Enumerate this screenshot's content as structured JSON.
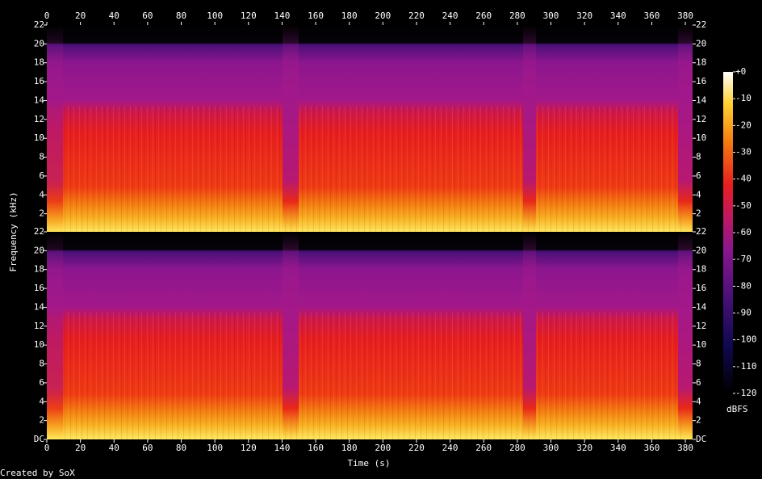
{
  "chart_data": [
    {
      "type": "spectrogram",
      "ylabel": "Frequency (kHz)",
      "xlim": [
        0,
        384.3
      ],
      "xticks": [
        0,
        20,
        40,
        60,
        80,
        100,
        120,
        140,
        160,
        180,
        200,
        220,
        240,
        260,
        280,
        300,
        320,
        340,
        360,
        380
      ],
      "ylim": [
        0,
        22
      ],
      "yticks": [
        2,
        4,
        6,
        8,
        10,
        12,
        14,
        16,
        18,
        20,
        22
      ],
      "xaxis_side": "top"
    },
    {
      "type": "spectrogram",
      "xlabel": "Time (s)",
      "xlim": [
        0,
        384.3
      ],
      "xticks": [
        0,
        20,
        40,
        60,
        80,
        100,
        120,
        140,
        160,
        180,
        200,
        220,
        240,
        260,
        280,
        300,
        320,
        340,
        360,
        380
      ],
      "ylim": [
        0,
        22
      ],
      "yticks": [
        {
          "value": 0,
          "label": "DC"
        },
        2,
        4,
        6,
        8,
        10,
        12,
        14,
        16,
        18,
        20,
        22
      ],
      "xaxis_side": "bottom"
    }
  ],
  "colorbar": {
    "label": "dBFS",
    "clim": [
      -120,
      0
    ],
    "ticks": [
      {
        "value": 0,
        "label": "+0"
      },
      -10,
      -20,
      -30,
      -40,
      -50,
      -60,
      -70,
      -80,
      -90,
      -100,
      -110,
      -120
    ]
  },
  "footer": "Created by SoX"
}
